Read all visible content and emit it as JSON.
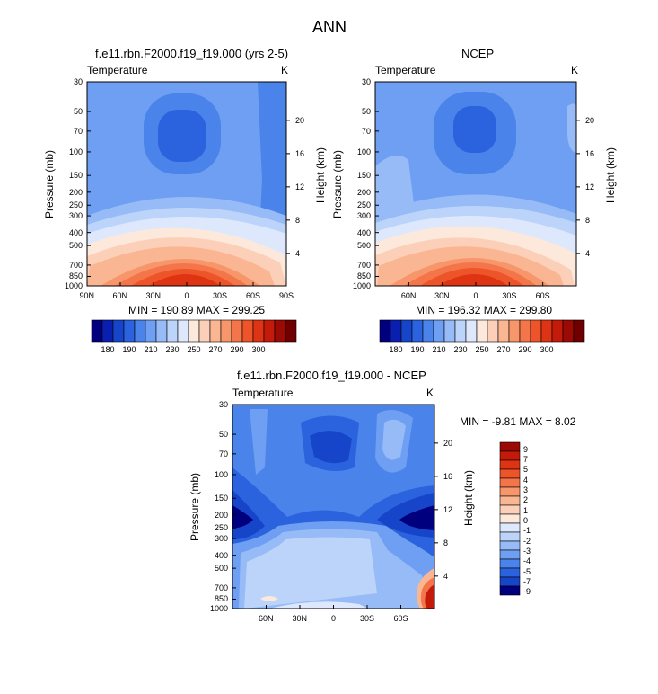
{
  "figure_title": "ANN",
  "colors": {
    "neg": [
      "#00007f",
      "#0a1faf",
      "#1645c9",
      "#2a63dd",
      "#4a83ea",
      "#6f9ff2",
      "#96bbf7",
      "#bcd4fa",
      "#dde8fd"
    ],
    "pos": [
      "#fde8dc",
      "#fcd0b8",
      "#fab692",
      "#f7966b",
      "#f47549",
      "#ee5429",
      "#de3414",
      "#c41a0a",
      "#9b0a05",
      "#700000"
    ]
  },
  "chart_data": [
    {
      "type": "heatmap",
      "title": "f.e11.rbn.F2000.f19_f19.000 (yrs 2-5)",
      "variable_label": "Temperature",
      "units": "K",
      "ylabel": "Pressure (mb)",
      "ylabel_right": "Height (km)",
      "min_max_text": "MIN = 190.89  MAX = 299.25",
      "min": 190.89,
      "max": 299.25,
      "lat_range": [
        90,
        -90
      ],
      "pressure_levels": [
        1000,
        850,
        700,
        500,
        400,
        300,
        250,
        200,
        150,
        100,
        70,
        50,
        30
      ],
      "x_ticks": [
        "90N",
        "60N",
        "30N",
        "0",
        "30S",
        "60S",
        "90S"
      ],
      "y_ticks": [
        "30",
        "50",
        "70",
        "100",
        "150",
        "200",
        "250",
        "300",
        "400",
        "500",
        "700",
        "850",
        "1000"
      ],
      "height_ticks": [
        "20",
        "16",
        "12",
        "8",
        "4"
      ],
      "colorbar_labels": [
        "180",
        "190",
        "210",
        "230",
        "250",
        "270",
        "290",
        "300"
      ],
      "colorbar_orientation": "horizontal"
    },
    {
      "type": "heatmap",
      "title": "NCEP",
      "variable_label": "Temperature",
      "units": "K",
      "ylabel": "Pressure (mb)",
      "ylabel_right": "Height (km)",
      "min_max_text": "MIN = 196.32  MAX = 299.80",
      "min": 196.32,
      "max": 299.8,
      "lat_range": [
        90,
        -90
      ],
      "pressure_levels": [
        1000,
        850,
        700,
        500,
        400,
        300,
        250,
        200,
        150,
        100,
        70,
        50,
        30
      ],
      "x_ticks": [
        "60N",
        "30N",
        "0",
        "30S",
        "60S"
      ],
      "y_ticks": [
        "30",
        "50",
        "70",
        "100",
        "150",
        "200",
        "250",
        "300",
        "400",
        "500",
        "700",
        "850",
        "1000"
      ],
      "height_ticks": [
        "20",
        "16",
        "12",
        "8",
        "4"
      ],
      "colorbar_labels": [
        "180",
        "190",
        "210",
        "230",
        "250",
        "270",
        "290",
        "300"
      ],
      "colorbar_orientation": "horizontal"
    },
    {
      "type": "heatmap",
      "title": "f.e11.rbn.F2000.f19_f19.000 - NCEP",
      "variable_label": "Temperature",
      "units": "K",
      "ylabel": "Pressure (mb)",
      "ylabel_right": "Height (km)",
      "min_max_text": "MIN =  -9.81  MAX =  8.02",
      "min": -9.81,
      "max": 8.02,
      "lat_range": [
        90,
        -90
      ],
      "pressure_levels": [
        1000,
        850,
        700,
        500,
        400,
        300,
        250,
        200,
        150,
        100,
        70,
        50,
        30
      ],
      "x_ticks": [
        "60N",
        "30N",
        "0",
        "30S",
        "60S"
      ],
      "y_ticks": [
        "30",
        "50",
        "70",
        "100",
        "150",
        "200",
        "250",
        "300",
        "400",
        "500",
        "700",
        "850",
        "1000"
      ],
      "height_ticks": [
        "20",
        "16",
        "12",
        "8",
        "4"
      ],
      "colorbar_labels": [
        "9",
        "7",
        "5",
        "4",
        "3",
        "2",
        "1",
        "0",
        "-1",
        "-2",
        "-3",
        "-4",
        "-5",
        "-7",
        "-9"
      ],
      "colorbar_orientation": "vertical"
    }
  ]
}
